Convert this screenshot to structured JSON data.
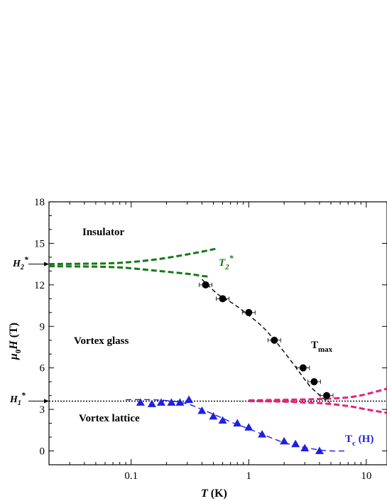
{
  "chart_data": {
    "type": "scatter",
    "x_scale": "log",
    "xlim": [
      0.02,
      15
    ],
    "ylim": [
      -1,
      18
    ],
    "x_ticks": [
      {
        "value": 0.1,
        "label": "0.1"
      },
      {
        "value": 1,
        "label": "1"
      },
      {
        "value": 10,
        "label": "10"
      }
    ],
    "y_ticks": [
      {
        "value": 0,
        "label": "0"
      },
      {
        "value": 3,
        "label": "3"
      },
      {
        "value": 6,
        "label": "6"
      },
      {
        "value": 9,
        "label": "9"
      },
      {
        "value": 12,
        "label": "12"
      },
      {
        "value": 15,
        "label": "15"
      },
      {
        "value": 18,
        "label": "18"
      }
    ],
    "xlabel": {
      "var": "T",
      "unit": " (K)"
    },
    "ylabel": {
      "var": "μ",
      "sub": "0",
      "var2": "H",
      "unit": " (T)"
    },
    "regions": {
      "insulator": "Insulator",
      "vortex_glass": "Vortex glass",
      "vortex_lattice": "Vortex lattice"
    },
    "annotations": {
      "H2": {
        "main": "H",
        "sub": "2",
        "sup": "*",
        "value": 13.5
      },
      "H1": {
        "main": "H",
        "sub": "1",
        "sup": "*",
        "value": 3.6
      },
      "T2": {
        "main": "T",
        "sub": "2",
        "sup": "*"
      },
      "Tmax": {
        "main": "T",
        "sub": "max"
      },
      "Tc": {
        "main": "T",
        "sub": "c",
        "tail": " (H)"
      }
    },
    "colors": {
      "tmax": "#000000",
      "tc": "#1f1fe6",
      "t2": "#167816",
      "t1": "#e8217a",
      "h1_line": "#000000"
    },
    "series": [
      {
        "marker": "circle",
        "x": [
          0.43,
          0.6,
          1.0,
          1.65,
          2.9,
          3.6,
          4.6
        ],
        "y": [
          12.0,
          11.0,
          10.0,
          8.0,
          6.0,
          5.0,
          4.0
        ]
      },
      {
        "marker": "triangle",
        "x": [
          0.12,
          0.15,
          0.18,
          0.22,
          0.26,
          0.31,
          0.4,
          0.5,
          0.6,
          0.8,
          1.0,
          1.3,
          2.0,
          2.5,
          3.0,
          4.0
        ],
        "y": [
          3.5,
          3.4,
          3.5,
          3.5,
          3.5,
          3.7,
          2.9,
          2.5,
          2.2,
          2.0,
          1.7,
          1.2,
          0.7,
          0.5,
          0.2,
          0.0
        ]
      }
    ],
    "curves": {
      "tmax_fit": {
        "x": [
          0.4,
          0.55,
          0.75,
          1.0,
          1.3,
          1.7,
          2.2,
          2.8,
          3.3,
          3.8,
          4.3,
          4.9
        ],
        "y": [
          12.4,
          11.3,
          10.6,
          9.8,
          9.0,
          7.9,
          6.7,
          5.5,
          4.7,
          4.2,
          3.8,
          3.5
        ]
      },
      "tc_fit": {
        "x": [
          0.09,
          0.15,
          0.22,
          0.3,
          0.4,
          0.55,
          0.75,
          1.0,
          1.4,
          2.0,
          2.8,
          3.8,
          5.0,
          7.0
        ],
        "y": [
          3.7,
          3.7,
          3.6,
          3.4,
          3.0,
          2.5,
          2.0,
          1.6,
          1.1,
          0.6,
          0.3,
          0.1,
          0.0,
          0.0
        ]
      },
      "t2_upper": {
        "x": [
          0.02,
          0.06,
          0.1,
          0.15,
          0.2,
          0.3,
          0.4,
          0.52
        ],
        "y": [
          13.5,
          13.55,
          13.65,
          13.8,
          13.95,
          14.2,
          14.4,
          14.6
        ]
      },
      "t2_lower": {
        "x": [
          0.02,
          0.06,
          0.1,
          0.15,
          0.2,
          0.3,
          0.4,
          0.45
        ],
        "y": [
          13.35,
          13.3,
          13.2,
          13.05,
          12.95,
          12.8,
          12.65,
          12.6
        ]
      },
      "t1_upper": {
        "x": [
          1.0,
          1.5,
          2.2,
          3.0,
          4.0,
          5.5,
          7.5,
          10,
          15
        ],
        "y": [
          3.65,
          3.68,
          3.7,
          3.72,
          3.75,
          3.8,
          3.9,
          4.1,
          4.5
        ]
      },
      "t1_lower": {
        "x": [
          1.0,
          1.5,
          2.2,
          3.0,
          4.0,
          5.5,
          7.5,
          10,
          15
        ],
        "y": [
          3.6,
          3.58,
          3.55,
          3.5,
          3.45,
          3.35,
          3.2,
          3.0,
          2.75
        ]
      }
    }
  }
}
